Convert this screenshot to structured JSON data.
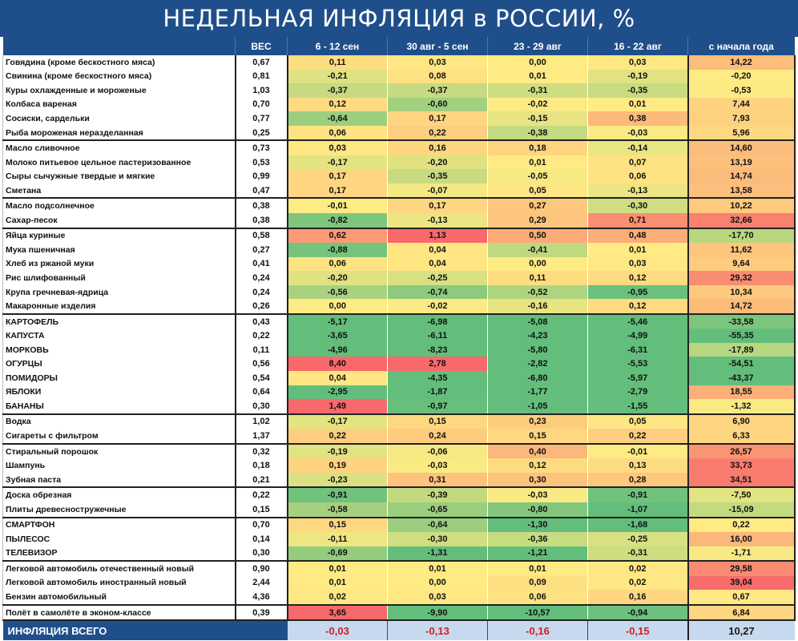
{
  "title": "НЕДЕЛЬНАЯ ИНФЛЯЦИЯ в РОССИИ, %",
  "headers": [
    "",
    "ВЕС",
    "6 - 12 сен",
    "30 авг - 5 сен",
    "23 - 29 авг",
    "16 - 22 авг",
    "с начала года"
  ],
  "rows": [
    {
      "name": "Говядина (кроме бескостного мяса)",
      "weight": "0,67",
      "values": [
        "0,11",
        "0,03",
        "0,00",
        "0,03",
        "14,22"
      ],
      "group_start": true
    },
    {
      "name": "Свинина (кроме бескостного мяса)",
      "weight": "0,81",
      "values": [
        "-0,21",
        "0,08",
        "0,01",
        "-0,19",
        "-0,20"
      ]
    },
    {
      "name": "Куры охлажденные и мороженые",
      "weight": "1,03",
      "values": [
        "-0,37",
        "-0,37",
        "-0,31",
        "-0,35",
        "-0,53"
      ]
    },
    {
      "name": "Колбаса вареная",
      "weight": "0,70",
      "values": [
        "0,12",
        "-0,60",
        "-0,02",
        "0,01",
        "7,44"
      ]
    },
    {
      "name": "Сосиски, сардельки",
      "weight": "0,77",
      "values": [
        "-0,64",
        "0,17",
        "-0,15",
        "0,38",
        "7,93"
      ]
    },
    {
      "name": "Рыба мороженая неразделанная",
      "weight": "0,25",
      "values": [
        "0,06",
        "0,22",
        "-0,38",
        "-0,03",
        "5,96"
      ]
    },
    {
      "name": "Масло сливочное",
      "weight": "0,73",
      "values": [
        "0,03",
        "0,16",
        "0,18",
        "-0,14",
        "14,60"
      ],
      "group_start": true
    },
    {
      "name": "Молоко питьевое цельное пастеризованное",
      "weight": "0,53",
      "values": [
        "-0,17",
        "-0,20",
        "0,01",
        "0,07",
        "13,19"
      ]
    },
    {
      "name": "Сыры сычужные твердые и мягкие",
      "weight": "0,99",
      "values": [
        "0,17",
        "-0,35",
        "-0,05",
        "0,06",
        "14,74"
      ]
    },
    {
      "name": "Сметана",
      "weight": "0,47",
      "values": [
        "0,17",
        "-0,07",
        "0,05",
        "-0,13",
        "13,58"
      ]
    },
    {
      "name": "Масло подсолнечное",
      "weight": "0,38",
      "values": [
        "-0,01",
        "0,17",
        "0,27",
        "-0,30",
        "10,22"
      ],
      "group_start": true
    },
    {
      "name": "Сахар-песок",
      "weight": "0,38",
      "values": [
        "-0,82",
        "-0,13",
        "0,29",
        "0,71",
        "32,66"
      ]
    },
    {
      "name": "Яйца куриные",
      "weight": "0,58",
      "values": [
        "0,62",
        "1,13",
        "0,50",
        "0,48",
        "-17,70"
      ],
      "group_start": true
    },
    {
      "name": "Мука пшеничная",
      "weight": "0,27",
      "values": [
        "-0,88",
        "0,04",
        "-0,41",
        "0,01",
        "11,62"
      ]
    },
    {
      "name": "Хлеб из ржаной муки",
      "weight": "0,41",
      "values": [
        "0,06",
        "0,04",
        "0,00",
        "0,03",
        "9,64"
      ]
    },
    {
      "name": "Рис шлифованный",
      "weight": "0,24",
      "values": [
        "-0,20",
        "-0,25",
        "0,11",
        "0,12",
        "29,32"
      ]
    },
    {
      "name": "Крупа гречневая-ядрица",
      "weight": "0,24",
      "values": [
        "-0,56",
        "-0,74",
        "-0,52",
        "-0,95",
        "10,34"
      ]
    },
    {
      "name": "Макаронные изделия",
      "weight": "0,26",
      "values": [
        "0,00",
        "-0,02",
        "-0,16",
        "0,12",
        "14,72"
      ]
    },
    {
      "name": "КАРТОФЕЛЬ",
      "weight": "0,43",
      "values": [
        "-5,17",
        "-6,98",
        "-5,08",
        "-5,46",
        "-33,58"
      ],
      "group_start": true
    },
    {
      "name": "КАПУСТА",
      "weight": "0,22",
      "values": [
        "-3,65",
        "-6,11",
        "-4,23",
        "-4,99",
        "-55,35"
      ]
    },
    {
      "name": "МОРКОВЬ",
      "weight": "0,11",
      "values": [
        "-4,96",
        "-8,23",
        "-5,80",
        "-6,31",
        "-17,89"
      ]
    },
    {
      "name": "ОГУРЦЫ",
      "weight": "0,56",
      "values": [
        "8,40",
        "2,78",
        "-2,82",
        "-5,53",
        "-54,51"
      ]
    },
    {
      "name": "ПОМИДОРЫ",
      "weight": "0,54",
      "values": [
        "0,04",
        "-4,35",
        "-6,80",
        "-5,97",
        "-43,37"
      ]
    },
    {
      "name": "ЯБЛОКИ",
      "weight": "0,64",
      "values": [
        "-2,95",
        "-1,87",
        "-1,77",
        "-2,79",
        "18,55"
      ]
    },
    {
      "name": "БАНАНЫ",
      "weight": "0,30",
      "values": [
        "1,49",
        "-0,97",
        "-1,05",
        "-1,55",
        "-1,32"
      ]
    },
    {
      "name": "Водка",
      "weight": "1,02",
      "values": [
        "-0,17",
        "0,15",
        "0,23",
        "0,05",
        "6,90"
      ],
      "group_start": true
    },
    {
      "name": "Сигареты с фильтром",
      "weight": "1,37",
      "values": [
        "0,22",
        "0,24",
        "0,15",
        "0,22",
        "6,33"
      ]
    },
    {
      "name": "Стиральный порошок",
      "weight": "0,32",
      "values": [
        "-0,19",
        "-0,06",
        "0,40",
        "-0,01",
        "26,57"
      ],
      "group_start": true
    },
    {
      "name": "Шампунь",
      "weight": "0,18",
      "values": [
        "0,19",
        "-0,03",
        "0,12",
        "0,13",
        "33,73"
      ]
    },
    {
      "name": "Зубная паста",
      "weight": "0,21",
      "values": [
        "-0,23",
        "0,31",
        "0,30",
        "0,28",
        "34,51"
      ]
    },
    {
      "name": "Доска обрезная",
      "weight": "0,22",
      "values": [
        "-0,91",
        "-0,39",
        "-0,03",
        "-0,91",
        "-7,50"
      ],
      "group_start": true
    },
    {
      "name": "Плиты древесностружечные",
      "weight": "0,15",
      "values": [
        "-0,58",
        "-0,65",
        "-0,80",
        "-1,07",
        "-15,09"
      ]
    },
    {
      "name": "СМАРТФОН",
      "weight": "0,70",
      "values": [
        "0,15",
        "-0,64",
        "-1,30",
        "-1,68",
        "0,22"
      ],
      "group_start": true
    },
    {
      "name": "ПЫЛЕСОС",
      "weight": "0,14",
      "values": [
        "-0,11",
        "-0,30",
        "-0,36",
        "-0,25",
        "16,00"
      ]
    },
    {
      "name": "ТЕЛЕВИЗОР",
      "weight": "0,30",
      "values": [
        "-0,69",
        "-1,31",
        "-1,21",
        "-0,31",
        "-1,71"
      ]
    },
    {
      "name": "Легковой автомобиль отечественный новый",
      "weight": "0,90",
      "values": [
        "0,01",
        "0,01",
        "0,01",
        "0,02",
        "29,58"
      ],
      "group_start": true
    },
    {
      "name": "Легковой автомобиль иностранный новый",
      "weight": "2,44",
      "values": [
        "0,01",
        "0,00",
        "0,09",
        "0,02",
        "39,04"
      ]
    },
    {
      "name": "Бензин автомобильный",
      "weight": "4,36",
      "values": [
        "0,02",
        "0,03",
        "0,06",
        "0,16",
        "0,67"
      ]
    },
    {
      "name": "Полёт в самолёте в эконом-классе",
      "weight": "0,39",
      "values": [
        "3,65",
        "-9,90",
        "-10,57",
        "-0,94",
        "6,84"
      ],
      "group_start": true
    }
  ],
  "total": {
    "label": "ИНФЛЯЦИЯ ВСЕГО",
    "values": [
      "-0,03",
      "-0,13",
      "-0,16",
      "-0,15",
      "10,27"
    ]
  },
  "chart_data": {
    "type": "table",
    "title": "НЕДЕЛЬНАЯ ИНФЛЯЦИЯ в РОССИИ, %",
    "columns": [
      "ВЕС",
      "6 - 12 сен",
      "30 авг - 5 сен",
      "23 - 29 авг",
      "16 - 22 авг",
      "с начала года"
    ],
    "total_row": {
      "label": "ИНФЛЯЦИЯ ВСЕГО",
      "values": [
        -0.03,
        -0.13,
        -0.16,
        -0.15,
        10.27
      ]
    },
    "color_scale": {
      "low": "#63be7b",
      "mid": "#ffeb84",
      "high": "#f8696b"
    }
  }
}
